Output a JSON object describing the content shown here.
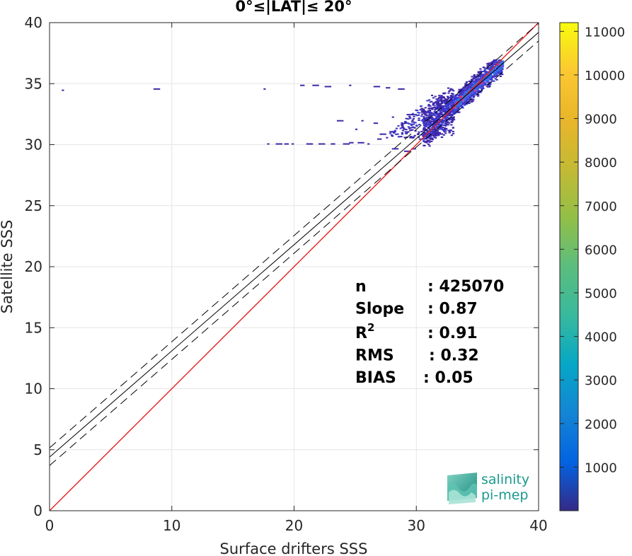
{
  "chart_data": {
    "type": "heatmap",
    "title": "0°≤|LAT|≤ 20°",
    "xlabel": "Surface drifters SSS",
    "ylabel": "Satellite SSS",
    "xlim": [
      0,
      40
    ],
    "ylim": [
      0,
      40
    ],
    "x_ticks": [
      "0",
      "10",
      "20",
      "30",
      "40"
    ],
    "y_ticks": [
      "0",
      "5",
      "10",
      "15",
      "20",
      "25",
      "30",
      "35",
      "40"
    ],
    "grid": true,
    "colorbar": {
      "colormap": "parula",
      "range": [
        0,
        11200
      ],
      "ticks": [
        "1000",
        "2000",
        "3000",
        "4000",
        "5000",
        "6000",
        "7000",
        "8000",
        "9000",
        "10000",
        "11000"
      ]
    },
    "reference_lines": [
      {
        "kind": "identity",
        "slope": 1,
        "intercept": 0,
        "color": "#e8201f",
        "style": "solid"
      },
      {
        "kind": "regression",
        "slope": 0.87,
        "intercept": 4.4,
        "color": "#000000",
        "style": "solid"
      },
      {
        "kind": "regression_bound_upper",
        "slope": 0.87,
        "intercept": 5.15,
        "color": "#000000",
        "style": "dashed"
      },
      {
        "kind": "regression_bound_lower",
        "slope": 0.87,
        "intercept": 3.7,
        "color": "#000000",
        "style": "dashed"
      }
    ],
    "density_clusters": [
      {
        "x_range": [
          31.5,
          36.5
        ],
        "y_center_offset": 0.4,
        "spread": 1.0,
        "count_level": 2000
      },
      {
        "x_range": [
          33.0,
          37.0
        ],
        "y_center_offset": 0.2,
        "spread": 0.5,
        "count_level": 3500
      },
      {
        "x_range": [
          17.5,
          31.0
        ],
        "y_center_offset": 0.0,
        "spread": 0.0,
        "count_level": 300
      }
    ],
    "scattered_points": [
      [
        1.0,
        34.4
      ],
      [
        8.5,
        34.5
      ],
      [
        17.5,
        34.5
      ],
      [
        17.8,
        30.0
      ],
      [
        18.5,
        30.0
      ],
      [
        19.2,
        30.0
      ],
      [
        19.8,
        30.0
      ],
      [
        21.0,
        30.0
      ],
      [
        22.0,
        30.0
      ],
      [
        23.0,
        30.0
      ],
      [
        24.0,
        30.0
      ],
      [
        24.5,
        30.1
      ],
      [
        25.2,
        30.1
      ],
      [
        26.0,
        30.0
      ],
      [
        20.5,
        34.8
      ],
      [
        21.5,
        34.8
      ],
      [
        22.5,
        34.7
      ],
      [
        24.5,
        34.8
      ],
      [
        26.5,
        34.7
      ],
      [
        27.5,
        34.6
      ],
      [
        28.5,
        34.5
      ],
      [
        23.5,
        31.9
      ],
      [
        25.5,
        31.9
      ],
      [
        26.5,
        31.7
      ],
      [
        27.0,
        30.8
      ],
      [
        27.8,
        31.0
      ],
      [
        28.5,
        30.6
      ],
      [
        26.8,
        30.4
      ],
      [
        28.0,
        29.6
      ],
      [
        29.0,
        29.4
      ],
      [
        29.6,
        29.6
      ],
      [
        30.2,
        30.4
      ],
      [
        29.2,
        32.4
      ],
      [
        28.0,
        32.2
      ],
      [
        25.0,
        31.2
      ]
    ],
    "stats": [
      {
        "label": "n",
        "value": ": 425070"
      },
      {
        "label": "Slope",
        "value": ": 0.87"
      },
      {
        "label": "R",
        "sup": "2",
        "value": ": 0.91"
      },
      {
        "label": "RMS",
        "value": ": 0.32"
      },
      {
        "label": "BIAS",
        "value": ": 0.05"
      }
    ]
  },
  "logo": {
    "line1": "salinity",
    "line2": "pi-mep"
  },
  "colors": {
    "identity": "#e8201f",
    "regression": "#000000",
    "low": "#3e26a8",
    "mid": "#2a8cd6",
    "accent": "#1a9a8e"
  }
}
